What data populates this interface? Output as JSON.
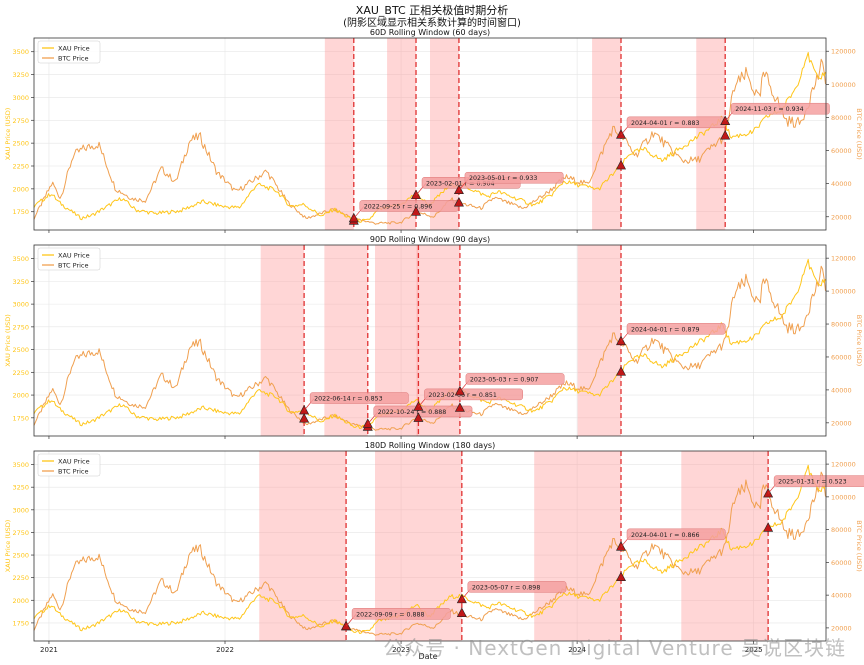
{
  "figure": {
    "title": "XAU_BTC 正相关极值时期分析",
    "subtitle": "(阴影区域显示相关系数计算的时间窗口)",
    "xlabel": "Date",
    "watermark": "公众号 · NextGen Digital Venture 吴说区块链"
  },
  "colors": {
    "xau": "#FFC61A",
    "btc": "#F0A050",
    "shade": "#FF9999",
    "vline": "#E03030",
    "marker": "#C01818",
    "annot_bg": "#F4A0A0"
  },
  "chart_data": [
    {
      "type": "line",
      "title": "60D Rolling Window (60 days)",
      "ylabel_left": "XAU Price (USD)",
      "ylabel_right": "BTC Price (USD)",
      "ylim_left": [
        1550,
        3650
      ],
      "ylim_right": [
        12000,
        128000
      ],
      "yticks_left": [
        "1750",
        "2000",
        "2250",
        "2500",
        "2750",
        "3000",
        "3250",
        "3500"
      ],
      "yticks_right": [
        "20000",
        "40000",
        "60000",
        "80000",
        "100000",
        "120000"
      ],
      "xlim": [
        "2020-12-01",
        "2025-05-31"
      ],
      "xticks": [
        "2021",
        "2022",
        "2023",
        "2024",
        "2025"
      ],
      "legend": [
        "XAU Price",
        "BTC Price"
      ],
      "legend_position": "upper-left",
      "grid": true,
      "windows": [
        {
          "start": "2022-07-27",
          "end": "2022-09-25"
        },
        {
          "start": "2022-12-03",
          "end": "2023-02-01"
        },
        {
          "start": "2023-03-02",
          "end": "2023-05-01"
        },
        {
          "start": "2024-02-01",
          "end": "2024-04-01"
        },
        {
          "start": "2024-09-04",
          "end": "2024-11-03"
        }
      ],
      "annotations": [
        {
          "date": "2022-09-25",
          "xau": 1650,
          "btc": 19000,
          "label": "2022-09-25\\nr = 0.896"
        },
        {
          "date": "2023-02-01",
          "xau": 1930,
          "btc": 23000,
          "label": "2023-02-01\\nr = 0.904"
        },
        {
          "date": "2023-05-01",
          "xau": 1985,
          "btc": 28500,
          "label": "2023-05-01\\nr = 0.933"
        },
        {
          "date": "2024-04-01",
          "xau": 2255,
          "btc": 69500,
          "label": "2024-04-01\\nr = 0.883"
        },
        {
          "date": "2024-11-03",
          "xau": 2740,
          "btc": 69000,
          "label": "2024-11-03\\nr = 0.934"
        }
      ]
    },
    {
      "type": "line",
      "title": "90D Rolling Window (90 days)",
      "ylabel_left": "XAU Price (USD)",
      "ylabel_right": "BTC Price (USD)",
      "ylim_left": [
        1550,
        3650
      ],
      "ylim_right": [
        12000,
        128000
      ],
      "yticks_left": [
        "1750",
        "2000",
        "2250",
        "2500",
        "2750",
        "3000",
        "3250",
        "3500"
      ],
      "yticks_right": [
        "20000",
        "40000",
        "60000",
        "80000",
        "100000",
        "120000"
      ],
      "xlim": [
        "2020-12-01",
        "2025-05-31"
      ],
      "xticks": [
        "2021",
        "2022",
        "2023",
        "2024",
        "2025"
      ],
      "legend": [
        "XAU Price",
        "BTC Price"
      ],
      "legend_position": "upper-left",
      "grid": true,
      "windows": [
        {
          "start": "2022-03-16",
          "end": "2022-06-14"
        },
        {
          "start": "2022-07-26",
          "end": "2022-10-24"
        },
        {
          "start": "2022-11-08",
          "end": "2023-02-06"
        },
        {
          "start": "2023-02-02",
          "end": "2023-05-03"
        },
        {
          "start": "2024-01-02",
          "end": "2024-04-01"
        }
      ],
      "annotations": [
        {
          "date": "2022-06-14",
          "xau": 1830,
          "btc": 22500,
          "label": "2022-06-14\\nr = 0.853"
        },
        {
          "date": "2022-10-24",
          "xau": 1650,
          "btc": 19300,
          "label": "2022-10-24\\nr = 0.888"
        },
        {
          "date": "2023-02-06",
          "xau": 1870,
          "btc": 22900,
          "label": "2023-02-06\\nr = 0.851"
        },
        {
          "date": "2023-05-03",
          "xau": 2040,
          "btc": 29000,
          "label": "2023-05-03\\nr = 0.907"
        },
        {
          "date": "2024-04-01",
          "xau": 2255,
          "btc": 69500,
          "label": "2024-04-01\\nr = 0.879"
        }
      ]
    },
    {
      "type": "line",
      "title": "180D Rolling Window (180 days)",
      "ylabel_left": "XAU Price (USD)",
      "ylabel_right": "BTC Price (USD)",
      "ylim_left": [
        1550,
        3650
      ],
      "ylim_right": [
        12000,
        128000
      ],
      "yticks_left": [
        "1750",
        "2000",
        "2250",
        "2500",
        "2750",
        "3000",
        "3250",
        "3500"
      ],
      "yticks_right": [
        "20000",
        "40000",
        "60000",
        "80000",
        "100000",
        "120000"
      ],
      "xlim": [
        "2020-12-01",
        "2025-05-31"
      ],
      "xticks": [
        "2021",
        "2022",
        "2023",
        "2024",
        "2025"
      ],
      "legend": [
        "XAU Price",
        "BTC Price"
      ],
      "legend_position": "upper-left",
      "grid": true,
      "windows": [
        {
          "start": "2022-03-13",
          "end": "2022-09-09"
        },
        {
          "start": "2022-11-08",
          "end": "2023-05-07"
        },
        {
          "start": "2023-10-04",
          "end": "2024-04-01"
        },
        {
          "start": "2024-08-04",
          "end": "2025-01-31"
        }
      ],
      "annotations": [
        {
          "date": "2022-09-09",
          "xau": 1710,
          "btc": 21000,
          "label": "2022-09-09\\nr = 0.888"
        },
        {
          "date": "2023-05-07",
          "xau": 2010,
          "btc": 29000,
          "label": "2023-05-07\\nr = 0.898"
        },
        {
          "date": "2024-04-01",
          "xau": 2255,
          "btc": 69500,
          "label": "2024-04-01\\nr = 0.866"
        },
        {
          "date": "2025-01-31",
          "xau": 2800,
          "btc": 102000,
          "label": "2025-01-31\\nr = 0.523"
        }
      ]
    }
  ],
  "xau_series": [
    [
      "2020-12-01",
      1810
    ],
    [
      "2021-01-06",
      1950
    ],
    [
      "2021-01-20",
      1860
    ],
    [
      "2021-03-08",
      1680
    ],
    [
      "2021-03-31",
      1710
    ],
    [
      "2021-05-15",
      1850
    ],
    [
      "2021-06-01",
      1900
    ],
    [
      "2021-06-30",
      1770
    ],
    [
      "2021-08-09",
      1730
    ],
    [
      "2021-09-30",
      1760
    ],
    [
      "2021-11-16",
      1860
    ],
    [
      "2021-12-31",
      1805
    ],
    [
      "2022-01-31",
      1795
    ],
    [
      "2022-03-08",
      2050
    ],
    [
      "2022-04-18",
      1980
    ],
    [
      "2022-05-16",
      1810
    ],
    [
      "2022-06-14",
      1830
    ],
    [
      "2022-07-21",
      1700
    ],
    [
      "2022-08-15",
      1780
    ],
    [
      "2022-09-25",
      1650
    ],
    [
      "2022-10-24",
      1650
    ],
    [
      "2022-11-15",
      1770
    ],
    [
      "2022-12-31",
      1825
    ],
    [
      "2023-02-01",
      1950
    ],
    [
      "2023-02-28",
      1820
    ],
    [
      "2023-04-13",
      2040
    ],
    [
      "2023-05-04",
      2050
    ],
    [
      "2023-06-30",
      1915
    ],
    [
      "2023-07-20",
      1970
    ],
    [
      "2023-10-05",
      1820
    ],
    [
      "2023-11-10",
      1940
    ],
    [
      "2023-12-04",
      2080
    ],
    [
      "2024-01-15",
      2030
    ],
    [
      "2024-02-14",
      1995
    ],
    [
      "2024-04-01",
      2255
    ],
    [
      "2024-04-20",
      2390
    ],
    [
      "2024-05-20",
      2430
    ],
    [
      "2024-06-25",
      2310
    ],
    [
      "2024-07-31",
      2440
    ],
    [
      "2024-09-30",
      2650
    ],
    [
      "2024-10-30",
      2780
    ],
    [
      "2024-11-14",
      2565
    ],
    [
      "2024-12-31",
      2620
    ],
    [
      "2025-01-31",
      2800
    ],
    [
      "2025-02-28",
      2860
    ],
    [
      "2025-03-31",
      3120
    ],
    [
      "2025-04-22",
      3480
    ],
    [
      "2025-05-15",
      3180
    ],
    [
      "2025-05-31",
      3300
    ]
  ],
  "btc_series": [
    [
      "2020-12-01",
      19000
    ],
    [
      "2021-01-08",
      40500
    ],
    [
      "2021-01-25",
      31000
    ],
    [
      "2021-02-20",
      57000
    ],
    [
      "2021-03-13",
      61000
    ],
    [
      "2021-04-14",
      64000
    ],
    [
      "2021-05-19",
      37000
    ],
    [
      "2021-06-22",
      31000
    ],
    [
      "2021-07-20",
      29800
    ],
    [
      "2021-08-22",
      49000
    ],
    [
      "2021-09-21",
      41000
    ],
    [
      "2021-10-20",
      66000
    ],
    [
      "2021-11-10",
      68500
    ],
    [
      "2021-12-15",
      47000
    ],
    [
      "2022-01-24",
      35000
    ],
    [
      "2022-03-28",
      47500
    ],
    [
      "2022-05-12",
      28500
    ],
    [
      "2022-06-18",
      19000
    ],
    [
      "2022-08-14",
      24500
    ],
    [
      "2022-09-25",
      19000
    ],
    [
      "2022-11-09",
      16000
    ],
    [
      "2022-12-31",
      16500
    ],
    [
      "2023-02-01",
      23000
    ],
    [
      "2023-03-10",
      20000
    ],
    [
      "2023-04-14",
      30500
    ],
    [
      "2023-05-01",
      28500
    ],
    [
      "2023-06-15",
      25000
    ],
    [
      "2023-07-13",
      31500
    ],
    [
      "2023-09-11",
      25000
    ],
    [
      "2023-10-31",
      34500
    ],
    [
      "2023-12-08",
      44000
    ],
    [
      "2024-01-23",
      39500
    ],
    [
      "2024-03-14",
      73000
    ],
    [
      "2024-04-01",
      69500
    ],
    [
      "2024-05-01",
      57000
    ],
    [
      "2024-06-07",
      71000
    ],
    [
      "2024-08-05",
      54000
    ],
    [
      "2024-09-06",
      54000
    ],
    [
      "2024-11-03",
      69000
    ],
    [
      "2024-11-22",
      98500
    ],
    [
      "2024-12-17",
      106000
    ],
    [
      "2025-01-13",
      90000
    ],
    [
      "2025-01-21",
      106000
    ],
    [
      "2025-01-31",
      102000
    ],
    [
      "2025-03-10",
      78000
    ],
    [
      "2025-04-08",
      76500
    ],
    [
      "2025-05-22",
      111000
    ],
    [
      "2025-05-31",
      104000
    ]
  ]
}
